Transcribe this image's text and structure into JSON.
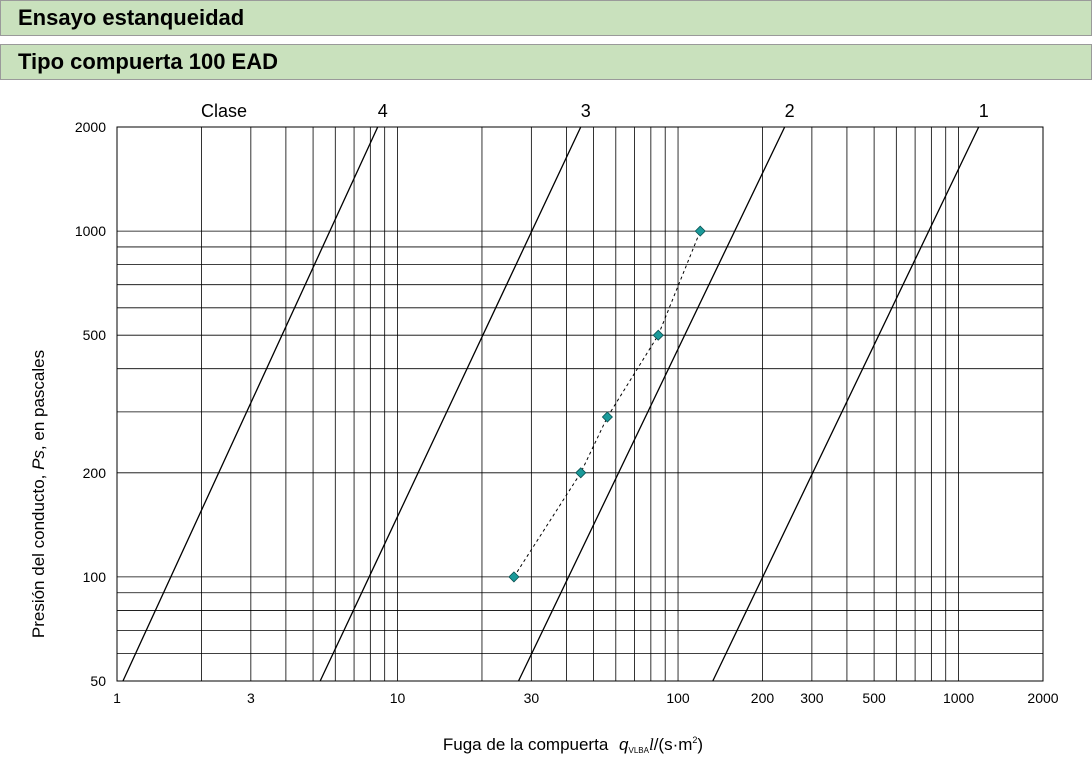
{
  "header": {
    "title": "Ensayo estanqueidad",
    "subtitle": "Tipo compuerta 100 EAD"
  },
  "chart_data": {
    "type": "scatter",
    "xscale": "log",
    "yscale": "log",
    "xlim": [
      1,
      2000
    ],
    "ylim": [
      50,
      2000
    ],
    "xticks": [
      1,
      3,
      10,
      30,
      100,
      200,
      300,
      500,
      1000,
      2000
    ],
    "yticks": [
      50,
      100,
      200,
      500,
      1000,
      2000
    ],
    "xlabel_main": "Fuga de la compuerta",
    "xlabel_symbol": "q",
    "xlabel_sub": "VLBA",
    "xlabel_unit_l": "l",
    "xlabel_unit_rest": "/(s·m",
    "xlabel_unit_exp": "2",
    "xlabel_close": ")",
    "ylabel_pre": "Presión del conducto,",
    "ylabel_symbol": "Ps",
    "ylabel_post": ", en pascales",
    "clase_label": "Clase",
    "class_lines": [
      {
        "label": "4",
        "points": [
          [
            1.05,
            50
          ],
          [
            8.5,
            2000
          ]
        ]
      },
      {
        "label": "3",
        "points": [
          [
            5.3,
            50
          ],
          [
            45,
            2000
          ]
        ]
      },
      {
        "label": "2",
        "points": [
          [
            27,
            50
          ],
          [
            240,
            2000
          ]
        ]
      },
      {
        "label": "1",
        "points": [
          [
            133,
            50
          ],
          [
            1180,
            2000
          ]
        ]
      }
    ],
    "measured": [
      {
        "x": 26,
        "y": 100
      },
      {
        "x": 45,
        "y": 200
      },
      {
        "x": 56,
        "y": 290
      },
      {
        "x": 85,
        "y": 500
      },
      {
        "x": 120,
        "y": 1000
      }
    ],
    "colors": {
      "marker": "#1a9a9a",
      "marker_stroke": "#0b4f4f",
      "grid": "#000000",
      "title_bg": "#c9e1bd"
    },
    "grid": true
  }
}
